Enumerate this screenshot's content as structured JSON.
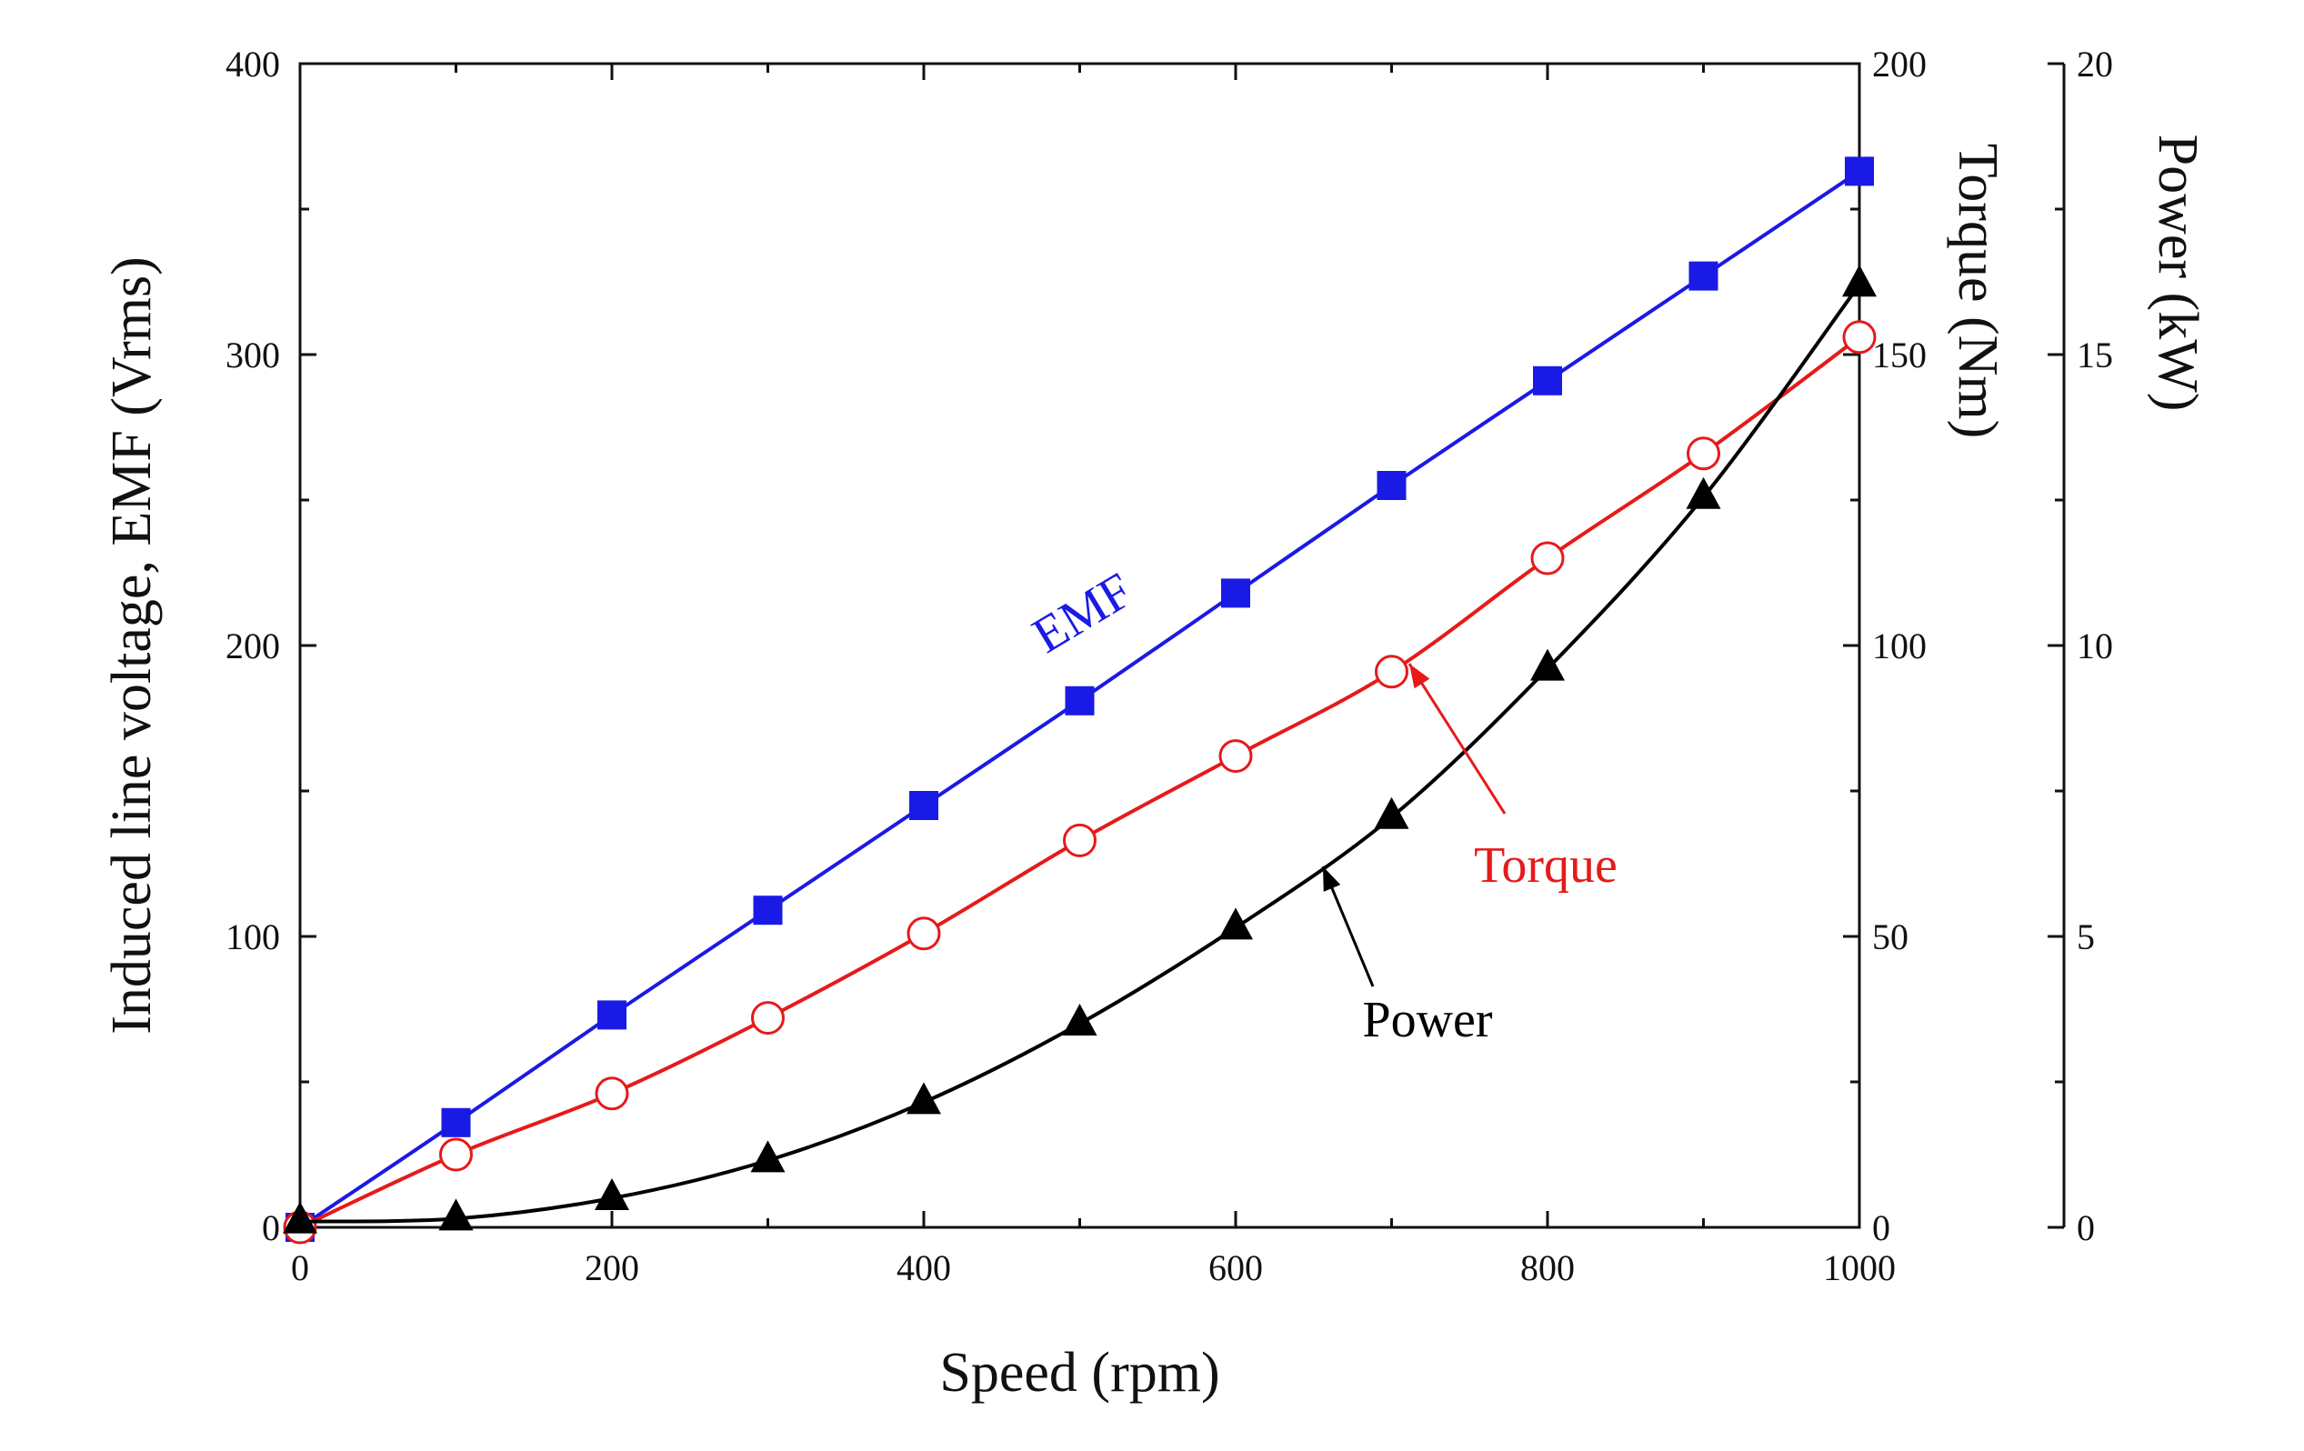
{
  "chart_data": {
    "type": "line",
    "x": [
      0,
      100,
      200,
      300,
      400,
      500,
      600,
      700,
      800,
      900,
      1000
    ],
    "xlabel": "Speed (rpm)",
    "xlim": [
      0,
      1000
    ],
    "xticks": [
      "0",
      "200",
      "400",
      "600",
      "800",
      "1000"
    ],
    "y_axes": {
      "left": {
        "label": "Induced line voltage, EMF (Vrms)",
        "lim": [
          0,
          400
        ],
        "ticks": [
          "0",
          "100",
          "200",
          "300",
          "400"
        ]
      },
      "right1": {
        "label": "Torque (Nm)",
        "lim": [
          0,
          200
        ],
        "ticks": [
          "0",
          "50",
          "100",
          "150",
          "200"
        ]
      },
      "right2": {
        "label": "Power (kW)",
        "lim": [
          0,
          20
        ],
        "ticks": [
          "0",
          "5",
          "10",
          "15",
          "20"
        ]
      }
    },
    "series": [
      {
        "name": "EMF",
        "axis": "left",
        "color": "#1a1ae6",
        "marker": "filled-square",
        "values": [
          0,
          36,
          73,
          109,
          145,
          181,
          218,
          255,
          291,
          327,
          363
        ]
      },
      {
        "name": "Torque",
        "axis": "right1",
        "color": "#e61a1a",
        "marker": "open-circle",
        "values": [
          0,
          12.5,
          23,
          36,
          50.5,
          66.5,
          81,
          95.5,
          115,
          133,
          153
        ]
      },
      {
        "name": "Power",
        "axis": "right2",
        "color": "#000000",
        "marker": "filled-triangle",
        "values": [
          0.1,
          0.15,
          0.5,
          1.15,
          2.15,
          3.5,
          5.15,
          7.05,
          9.6,
          12.55,
          16.2
        ]
      }
    ],
    "grid": false
  }
}
